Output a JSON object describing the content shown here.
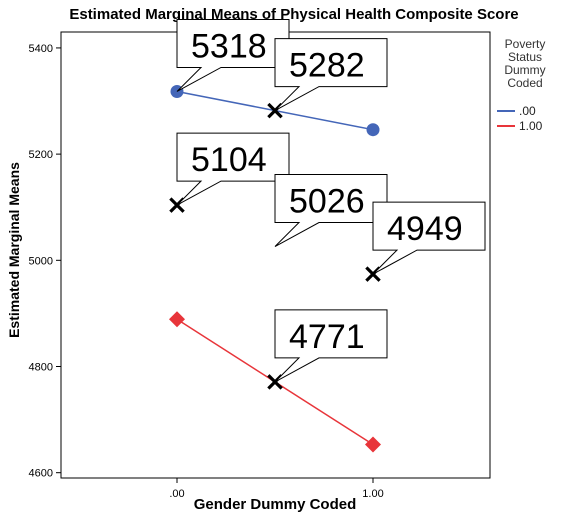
{
  "chart_data": {
    "type": "line",
    "title": "Estimated Marginal Means of Physical Health Composite Score",
    "xlabel": "Gender Dummy Coded",
    "ylabel": "Estimated Marginal Means",
    "categories": [
      ".00",
      "1.00"
    ],
    "y_ticks": [
      "4600",
      "4800",
      "5000",
      "5200",
      "5400"
    ],
    "ylim": [
      4590,
      5430
    ],
    "grid": false,
    "legend": {
      "title": "Poverty\nStatus\nDummy\nCoded",
      "placement": "right"
    },
    "series": [
      {
        "name": ".00",
        "values": [
          5318,
          5246
        ],
        "color": "#4466b8",
        "marker": "circle"
      },
      {
        "name": "1.00",
        "values": [
          4889,
          4653
        ],
        "color": "#e8353a",
        "marker": "diamond"
      }
    ],
    "annotations": [
      {
        "label": "5318",
        "x": 0.0,
        "y": 5318,
        "marker": false
      },
      {
        "label": "5282",
        "x": 0.5,
        "y": 5282,
        "marker": true
      },
      {
        "label": "5104",
        "x": 0.0,
        "y": 5104,
        "marker": true
      },
      {
        "label": "5026",
        "x": 0.5,
        "y": 5026,
        "marker": false
      },
      {
        "label": "4949",
        "x": 1.0,
        "y": 4974,
        "marker": true
      },
      {
        "label": "4771",
        "x": 0.5,
        "y": 4771,
        "marker": true
      }
    ]
  }
}
